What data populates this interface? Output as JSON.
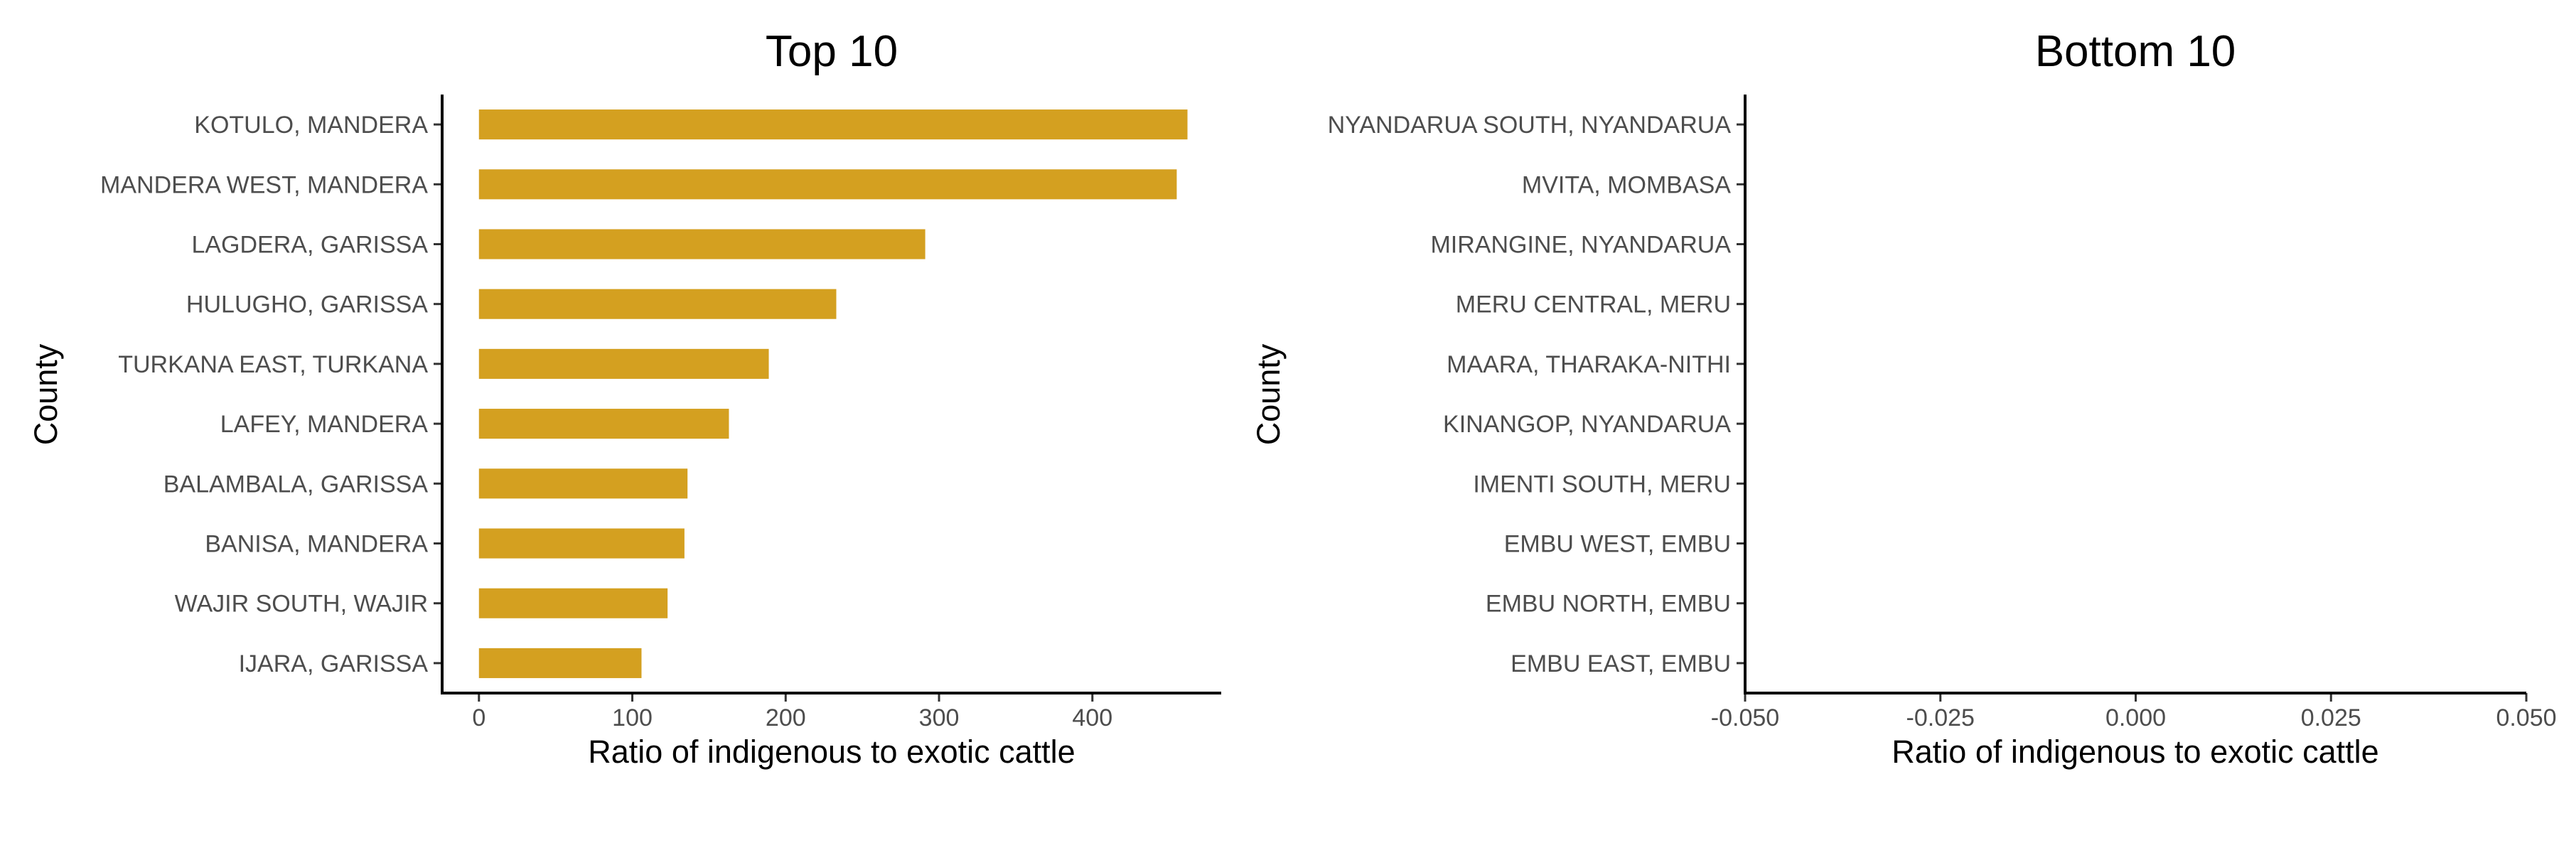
{
  "colors": {
    "bar": "#D4A020",
    "axis": "#000000",
    "tick_label": "#4D4D4D"
  },
  "chart_data": [
    {
      "type": "bar",
      "orientation": "horizontal",
      "title": "Top 10",
      "xlabel": "Ratio of indigenous to exotic cattle",
      "ylabel": "County",
      "categories": [
        "KOTULO, MANDERA",
        "MANDERA WEST, MANDERA",
        "LAGDERA, GARISSA",
        "HULUGHO, GARISSA",
        "TURKANA EAST, TURKANA",
        "LAFEY, MANDERA",
        "BALAMBALA, GARISSA",
        "BANISA, MANDERA",
        "WAJIR SOUTH, WAJIR",
        "IJARA, GARISSA"
      ],
      "values": [
        462,
        455,
        291,
        233,
        189,
        163,
        136,
        134,
        123,
        106
      ],
      "xlim": [
        -24,
        484
      ],
      "xticks": [
        0,
        100,
        200,
        300,
        400
      ],
      "xtick_labels": [
        "0",
        "100",
        "200",
        "300",
        "400"
      ],
      "grid": false,
      "legend": "none"
    },
    {
      "type": "bar",
      "orientation": "horizontal",
      "title": "Bottom 10",
      "xlabel": "Ratio of indigenous to exotic cattle",
      "ylabel": "County",
      "categories": [
        "NYANDARUA SOUTH, NYANDARUA",
        "MVITA, MOMBASA",
        "MIRANGINE, NYANDARUA",
        "MERU CENTRAL, MERU",
        "MAARA, THARAKA-NITHI",
        "KINANGOP, NYANDARUA",
        "IMENTI SOUTH, MERU",
        "EMBU WEST, EMBU",
        "EMBU NORTH, EMBU",
        "EMBU EAST, EMBU"
      ],
      "values": [
        0,
        0,
        0,
        0,
        0,
        0,
        0,
        0,
        0,
        0
      ],
      "xlim": [
        -0.05,
        0.05
      ],
      "xticks": [
        -0.05,
        -0.025,
        0,
        0.025,
        0.05
      ],
      "xtick_labels": [
        "-0.050",
        "-0.025",
        "0.000",
        "0.025",
        "0.050"
      ],
      "grid": false,
      "legend": "none"
    }
  ]
}
